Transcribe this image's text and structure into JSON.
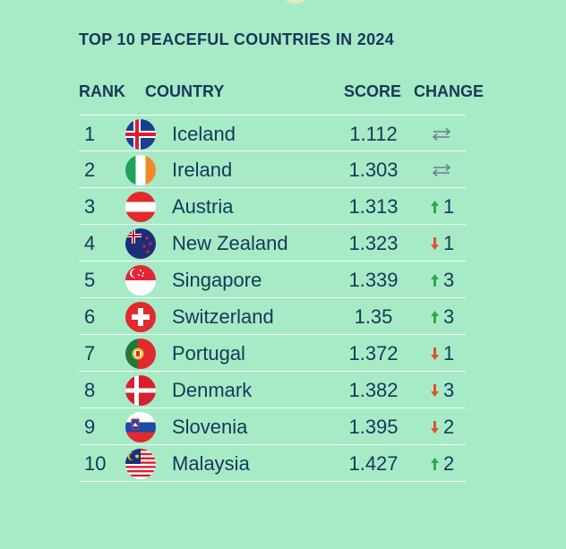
{
  "title": "TOP 10 PEACEFUL COUNTRIES IN 2024",
  "headers": {
    "rank": "RANK",
    "country": "COUNTRY",
    "score": "SCORE",
    "change": "CHANGE"
  },
  "colors": {
    "background": "#a6ebc6",
    "text": "#17375a",
    "up": "#2ea84f",
    "down": "#e0522a",
    "divider": "#f4fbf6"
  },
  "rows": [
    {
      "rank": "1",
      "country": "Iceland",
      "flag_icon": "iceland-flag-icon",
      "score": "1.112",
      "change_dir": "none",
      "change_value": ""
    },
    {
      "rank": "2",
      "country": "Ireland",
      "flag_icon": "ireland-flag-icon",
      "score": "1.303",
      "change_dir": "none",
      "change_value": ""
    },
    {
      "rank": "3",
      "country": "Austria",
      "flag_icon": "austria-flag-icon",
      "score": "1.313",
      "change_dir": "up",
      "change_value": "1"
    },
    {
      "rank": "4",
      "country": "New Zealand",
      "flag_icon": "new-zealand-flag-icon",
      "score": "1.323",
      "change_dir": "down",
      "change_value": "1"
    },
    {
      "rank": "5",
      "country": "Singapore",
      "flag_icon": "singapore-flag-icon",
      "score": "1.339",
      "change_dir": "up",
      "change_value": "3"
    },
    {
      "rank": "6",
      "country": "Switzerland",
      "flag_icon": "switzerland-flag-icon",
      "score": "1.35",
      "change_dir": "up",
      "change_value": "3"
    },
    {
      "rank": "7",
      "country": "Portugal",
      "flag_icon": "portugal-flag-icon",
      "score": "1.372",
      "change_dir": "down",
      "change_value": "1"
    },
    {
      "rank": "8",
      "country": "Denmark",
      "flag_icon": "denmark-flag-icon",
      "score": "1.382",
      "change_dir": "down",
      "change_value": "3"
    },
    {
      "rank": "9",
      "country": "Slovenia",
      "flag_icon": "slovenia-flag-icon",
      "score": "1.395",
      "change_dir": "down",
      "change_value": "2"
    },
    {
      "rank": "10",
      "country": "Malaysia",
      "flag_icon": "malaysia-flag-icon",
      "score": "1.427",
      "change_dir": "up",
      "change_value": "2"
    }
  ]
}
